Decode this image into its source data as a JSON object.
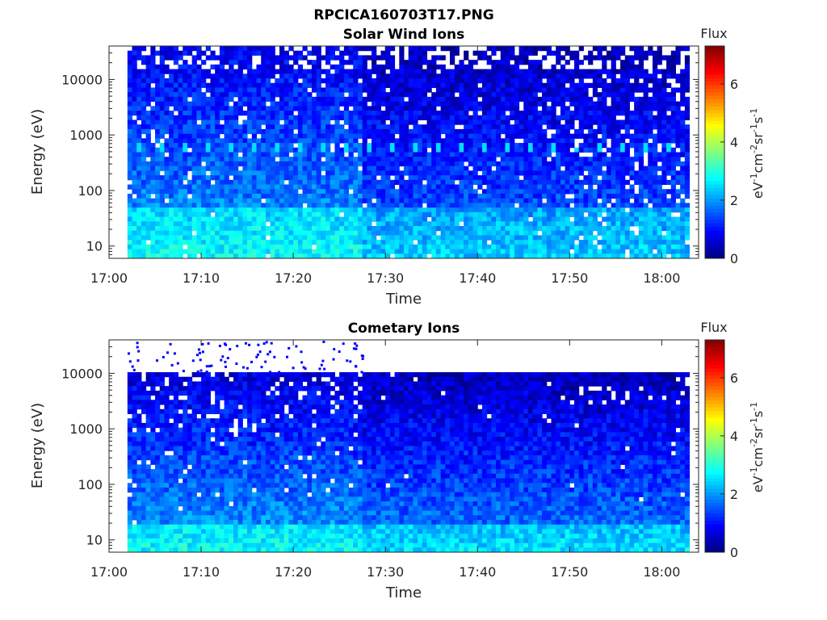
{
  "figure_title": "RPCICA160703T17.PNG",
  "chart_data": [
    {
      "type": "heatmap",
      "title": "Solar Wind Ions",
      "xlabel": "Time",
      "ylabel": "Energy (eV)",
      "yscale": "log",
      "x_range": [
        "17:00",
        "18:04"
      ],
      "y_range": [
        6,
        40000
      ],
      "x_ticks": [
        "17:00",
        "17:10",
        "17:20",
        "17:30",
        "17:40",
        "17:50",
        "18:00"
      ],
      "y_ticks": [
        "10",
        "100",
        "1000",
        "10000"
      ],
      "data_start": "17:02",
      "data_end": "18:03",
      "regime_change": "17:27.5",
      "recurring_feature_energy_eV": 600,
      "colorbar": {
        "title": "Flux",
        "label": "eV-1cm-2sr-1s-1",
        "range": [
          0,
          7.3
        ],
        "ticks": [
          "0",
          "2",
          "4",
          "6"
        ]
      },
      "colormap": [
        "#00007f",
        "#0000ff",
        "#007fff",
        "#00ffff",
        "#7fff7f",
        "#ffff00",
        "#ff7f00",
        "#ff0000",
        "#7f0000"
      ]
    },
    {
      "type": "heatmap",
      "title": "Cometary Ions",
      "xlabel": "Time",
      "ylabel": "Energy (eV)",
      "yscale": "log",
      "x_range": [
        "17:00",
        "18:04"
      ],
      "y_range": [
        6,
        40000
      ],
      "x_ticks": [
        "17:00",
        "17:10",
        "17:20",
        "17:30",
        "17:40",
        "17:50",
        "18:00"
      ],
      "y_ticks": [
        "10",
        "100",
        "1000",
        "10000"
      ],
      "data_start": "17:02",
      "data_end": "18:03",
      "upper_energy_cutoff_eV": 11000,
      "regime_change": "17:27.5",
      "colorbar": {
        "title": "Flux",
        "label": "eV-1cm-2sr-1s-1",
        "range": [
          0,
          7.3
        ],
        "ticks": [
          "0",
          "2",
          "4",
          "6"
        ]
      },
      "colormap": [
        "#00007f",
        "#0000ff",
        "#007fff",
        "#00ffff",
        "#7fff7f",
        "#ffff00",
        "#ff7f00",
        "#ff0000",
        "#7f0000"
      ]
    }
  ]
}
